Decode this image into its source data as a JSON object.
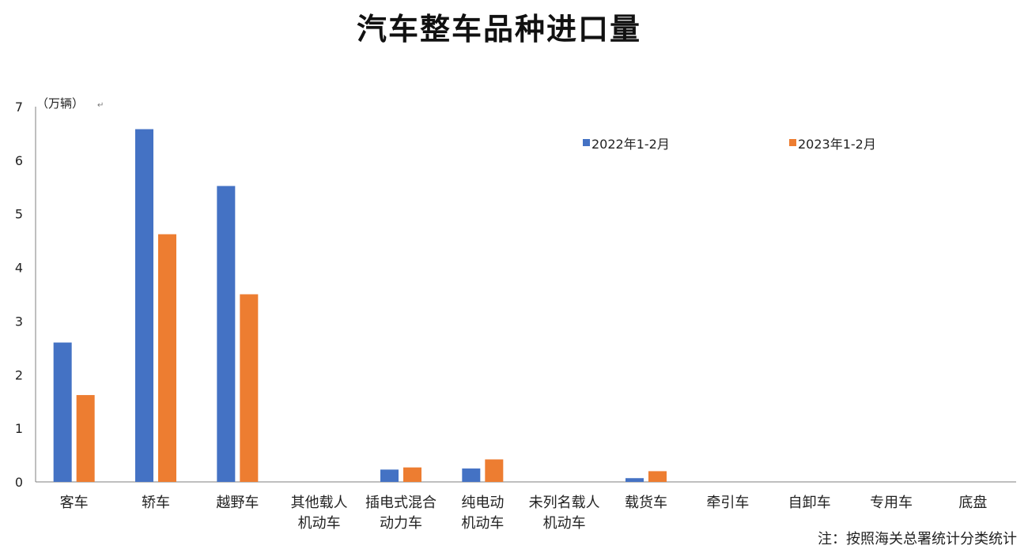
{
  "chart_data": {
    "type": "bar",
    "title": "汽车整车品种进口量",
    "unit_label": "（万辆）",
    "unit_mark": "↵",
    "note": "注：按照海关总署统计分类统计",
    "categories": [
      [
        "客车"
      ],
      [
        "轿车"
      ],
      [
        "越野车"
      ],
      [
        "其他载人",
        "机动车"
      ],
      [
        "插电式混合",
        "动力车"
      ],
      [
        "纯电动",
        "机动车"
      ],
      [
        "未列名载人",
        "机动车"
      ],
      [
        "载货车"
      ],
      [
        "牵引车"
      ],
      [
        "自卸车"
      ],
      [
        "专用车"
      ],
      [
        "底盘"
      ]
    ],
    "series": [
      {
        "name": "2022年1-2月",
        "color": "#4472c4",
        "values": [
          2.6,
          6.58,
          5.52,
          0,
          0.23,
          0.25,
          0,
          0.07,
          0,
          0,
          0,
          0
        ]
      },
      {
        "name": "2023年1-2月",
        "color": "#ed7d31",
        "values": [
          1.62,
          4.62,
          3.5,
          0,
          0.27,
          0.42,
          0,
          0.2,
          0,
          0,
          0,
          0
        ]
      }
    ],
    "ylim": [
      0,
      7
    ],
    "yticks": [
      "0",
      "1",
      "2",
      "3",
      "4",
      "5",
      "6",
      "7"
    ],
    "legend_position": "top-right",
    "grid": false
  }
}
